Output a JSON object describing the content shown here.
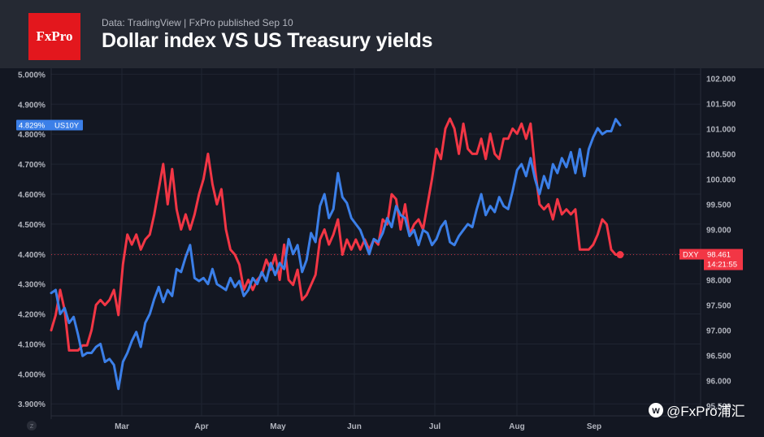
{
  "header": {
    "logo_text": "FxPro",
    "meta": "Data: TradingView  |  FxPro published Sep 10",
    "title": "Dollar index VS US Treasury yields"
  },
  "watermark": {
    "icon": "weibo-icon",
    "text": "@FxPro浦汇"
  },
  "colors": {
    "background": "#131722",
    "header": "#252933",
    "us10y": "#3b7fe8",
    "dxy": "#f23645",
    "grid": "#1f2431",
    "axis_text": "#b2b5be"
  },
  "chart_data": {
    "type": "line",
    "title": "Dollar index VS US Treasury yields",
    "x_tick_labels": [
      "Mar",
      "Apr",
      "May",
      "Jun",
      "Jul",
      "Aug",
      "Sep"
    ],
    "y_left": {
      "ticks": [
        "5.000%",
        "4.900%",
        "4.800%",
        "4.700%",
        "4.600%",
        "4.500%",
        "4.400%",
        "4.300%",
        "4.200%",
        "4.100%",
        "4.000%",
        "3.900%"
      ],
      "range": [
        3.86,
        5.02
      ]
    },
    "y_right": {
      "ticks": [
        "102.000",
        "101.500",
        "101.000",
        "100.500",
        "100.000",
        "99.500",
        "99.000",
        "98.500",
        "98.000",
        "97.500",
        "97.000",
        "96.500",
        "96.000",
        "95.500"
      ],
      "range": [
        95.3,
        102.2
      ]
    },
    "grid": true,
    "series": [
      {
        "name": "US10Y",
        "axis": "left",
        "last_value_label": "4.829%",
        "values": [
          4.27,
          4.28,
          4.2,
          4.22,
          4.17,
          4.19,
          4.13,
          4.06,
          4.07,
          4.07,
          4.09,
          4.1,
          4.04,
          4.05,
          4.03,
          3.95,
          4.04,
          4.07,
          4.11,
          4.14,
          4.09,
          4.17,
          4.2,
          4.25,
          4.29,
          4.24,
          4.28,
          4.26,
          4.35,
          4.34,
          4.39,
          4.43,
          4.32,
          4.31,
          4.32,
          4.3,
          4.35,
          4.3,
          4.29,
          4.28,
          4.32,
          4.29,
          4.31,
          4.26,
          4.28,
          4.32,
          4.3,
          4.34,
          4.31,
          4.37,
          4.33,
          4.37,
          4.35,
          4.45,
          4.4,
          4.43,
          4.34,
          4.38,
          4.47,
          4.44,
          4.56,
          4.6,
          4.52,
          4.55,
          4.67,
          4.59,
          4.57,
          4.52,
          4.5,
          4.48,
          4.44,
          4.4,
          4.45,
          4.44,
          4.47,
          4.52,
          4.49,
          4.56,
          4.53,
          4.52,
          4.46,
          4.48,
          4.43,
          4.48,
          4.47,
          4.43,
          4.45,
          4.49,
          4.51,
          4.44,
          4.43,
          4.46,
          4.48,
          4.5,
          4.49,
          4.55,
          4.6,
          4.53,
          4.56,
          4.54,
          4.59,
          4.56,
          4.55,
          4.61,
          4.68,
          4.7,
          4.66,
          4.72,
          4.65,
          4.6,
          4.66,
          4.62,
          4.7,
          4.67,
          4.72,
          4.69,
          4.74,
          4.67,
          4.75,
          4.66,
          4.75,
          4.79,
          4.82,
          4.8,
          4.81,
          4.81,
          4.85,
          4.83
        ]
      },
      {
        "name": "DXY",
        "axis": "right",
        "last_value_label": "98.461",
        "time_label": "14:21:55",
        "values": [
          97.0,
          97.3,
          97.8,
          97.4,
          96.6,
          96.6,
          96.6,
          96.7,
          96.7,
          97.0,
          97.5,
          97.6,
          97.5,
          97.6,
          97.8,
          97.3,
          98.3,
          98.9,
          98.7,
          98.9,
          98.6,
          98.8,
          98.9,
          99.3,
          99.8,
          100.3,
          99.5,
          100.2,
          99.4,
          99.0,
          99.3,
          99.0,
          99.3,
          99.7,
          100.0,
          100.5,
          99.9,
          99.5,
          99.8,
          99.0,
          98.6,
          98.5,
          98.3,
          97.8,
          98.0,
          97.8,
          98.0,
          98.1,
          98.4,
          98.2,
          98.5,
          98.0,
          98.7,
          98.0,
          97.9,
          98.2,
          97.6,
          97.7,
          97.9,
          98.1,
          98.8,
          99.0,
          98.7,
          98.9,
          99.2,
          98.5,
          98.8,
          98.6,
          98.8,
          98.6,
          98.8,
          98.6,
          98.8,
          98.7,
          99.2,
          99.1,
          99.7,
          99.6,
          99.0,
          99.5,
          98.9,
          99.1,
          99.2,
          99.0,
          99.5,
          100.0,
          100.6,
          100.4,
          101.0,
          101.2,
          101.0,
          100.5,
          101.1,
          100.6,
          100.5,
          100.5,
          100.8,
          100.4,
          100.9,
          100.5,
          100.4,
          100.8,
          100.8,
          101.0,
          100.9,
          101.1,
          100.8,
          101.1,
          100.2,
          99.5,
          99.4,
          99.5,
          99.2,
          99.6,
          99.3,
          99.4,
          99.3,
          99.4,
          98.6,
          98.6,
          98.6,
          98.7,
          98.9,
          99.2,
          99.1,
          98.6,
          98.5,
          98.5
        ]
      }
    ]
  }
}
